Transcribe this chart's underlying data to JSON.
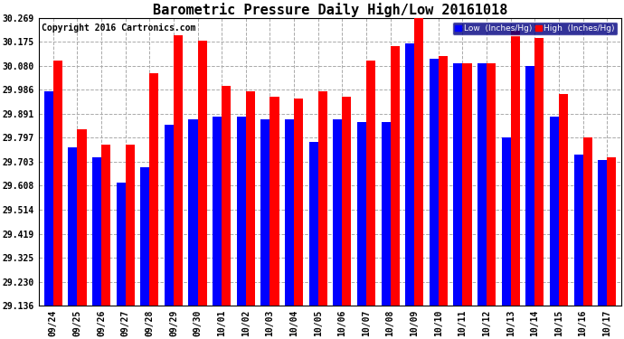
{
  "title": "Barometric Pressure Daily High/Low 20161018",
  "copyright": "Copyright 2016 Cartronics.com",
  "dates": [
    "09/24",
    "09/25",
    "09/26",
    "09/27",
    "09/28",
    "09/29",
    "09/30",
    "10/01",
    "10/02",
    "10/03",
    "10/04",
    "10/05",
    "10/06",
    "10/07",
    "10/08",
    "10/09",
    "10/10",
    "10/11",
    "10/12",
    "10/13",
    "10/14",
    "10/15",
    "10/16",
    "10/17"
  ],
  "low": [
    29.98,
    29.76,
    29.72,
    29.62,
    29.68,
    29.85,
    29.87,
    29.88,
    29.88,
    29.87,
    29.87,
    29.78,
    29.87,
    29.86,
    29.86,
    30.17,
    30.11,
    30.09,
    30.09,
    29.8,
    30.08,
    29.88,
    29.73,
    29.71
  ],
  "high": [
    30.1,
    29.83,
    29.77,
    29.77,
    30.05,
    30.2,
    30.18,
    30.0,
    29.98,
    29.96,
    29.95,
    29.98,
    29.96,
    30.1,
    30.16,
    30.28,
    30.12,
    30.09,
    30.09,
    30.22,
    30.19,
    29.97,
    29.8,
    29.72
  ],
  "ylim_min": 29.136,
  "ylim_max": 30.269,
  "yticks": [
    29.136,
    29.23,
    29.325,
    29.419,
    29.514,
    29.608,
    29.703,
    29.797,
    29.891,
    29.986,
    30.08,
    30.175,
    30.269
  ],
  "bar_width": 0.38,
  "low_color": "#0000ff",
  "high_color": "#ff0000",
  "bg_color": "#ffffff",
  "grid_color": "#aaaaaa",
  "title_fontsize": 11,
  "copyright_fontsize": 7,
  "tick_fontsize": 7,
  "legend_low_label": "Low  (Inches/Hg)",
  "legend_high_label": "High  (Inches/Hg)"
}
